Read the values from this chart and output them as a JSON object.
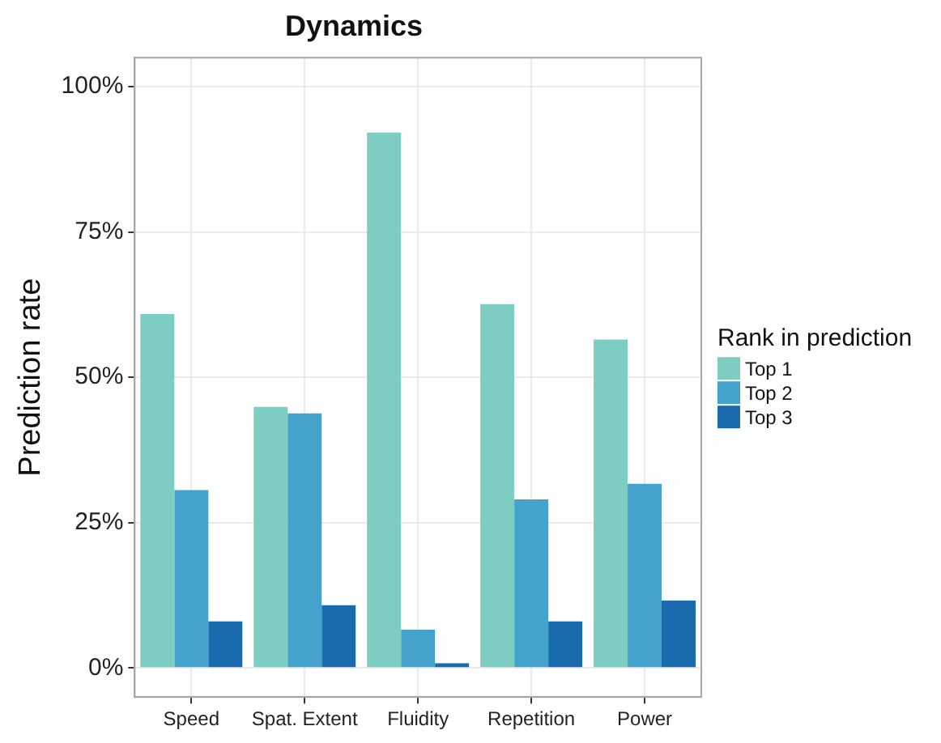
{
  "chart_data": {
    "type": "bar",
    "title": "Dynamics",
    "ylabel": "Prediction rate",
    "legend_title": "Rank in prediction",
    "categories": [
      "Speed",
      "Spat. Extent",
      "Fluidity",
      "Repetition",
      "Power"
    ],
    "series": [
      {
        "name": "Top 1",
        "color": "#7ecdc3",
        "values": [
          60.9,
          44.9,
          92.1,
          62.6,
          56.5
        ]
      },
      {
        "name": "Top 2",
        "color": "#45a2cc",
        "values": [
          30.6,
          43.8,
          6.6,
          29.0,
          31.7
        ]
      },
      {
        "name": "Top 3",
        "color": "#1a6aae",
        "values": [
          8.0,
          10.8,
          0.8,
          8.0,
          11.6
        ]
      }
    ],
    "ylim": [
      -5,
      105
    ],
    "yticks": [
      {
        "value": 0,
        "label": "0%"
      },
      {
        "value": 25,
        "label": "25%"
      },
      {
        "value": 50,
        "label": "50%"
      },
      {
        "value": 75,
        "label": "75%"
      },
      {
        "value": 100,
        "label": "100%"
      }
    ],
    "grid": true,
    "legend": "right"
  }
}
